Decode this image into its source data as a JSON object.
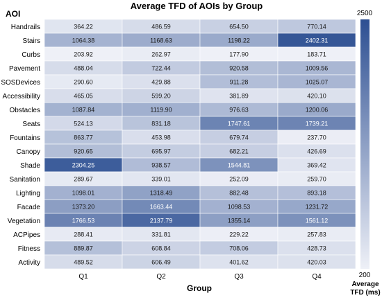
{
  "chart_data": {
    "type": "heatmap",
    "title": "Average TFD of AOIs by Group",
    "xlabel": "Group",
    "ylabel": "AOI",
    "columns": [
      "Q1",
      "Q2",
      "Q3",
      "Q4"
    ],
    "rows": [
      "Handrails",
      "Stairs",
      "Curbs",
      "Pavement",
      "SOSDevices",
      "Accessibility",
      "Obstacles",
      "Seats",
      "Fountains",
      "Canopy",
      "Shade",
      "Sanitation",
      "Lighting",
      "Facade",
      "Vegetation",
      "ACPipes",
      "Fitness",
      "Activity"
    ],
    "values": [
      [
        "364.22",
        "486.59",
        "654.50",
        "770.14"
      ],
      [
        "1064.38",
        "1168.63",
        "1198.22",
        "2402.31"
      ],
      [
        "203.92",
        "262.97",
        "177.90",
        "183.71"
      ],
      [
        "488.04",
        "722.44",
        "920.58",
        "1009.56"
      ],
      [
        "290.60",
        "429.88",
        "911.28",
        "1025.07"
      ],
      [
        "465.05",
        "599.20",
        "381.89",
        "420.10"
      ],
      [
        "1087.84",
        "1119.90",
        "976.63",
        "1200.06"
      ],
      [
        "524.13",
        "831.18",
        "1747.61",
        "1739.21"
      ],
      [
        "863.77",
        "453.98",
        "679.74",
        "237.70"
      ],
      [
        "920.65",
        "695.97",
        "682.21",
        "426.69"
      ],
      [
        "2304.25",
        "938.57",
        "1544.81",
        "369.42"
      ],
      [
        "289.67",
        "339.01",
        "252.09",
        "259.70"
      ],
      [
        "1098.01",
        "1318.49",
        "882.48",
        "893.18"
      ],
      [
        "1373.20",
        "1663.44",
        "1098.53",
        "1231.72"
      ],
      [
        "1766.53",
        "2137.79",
        "1355.14",
        "1561.12"
      ],
      [
        "288.41",
        "331.81",
        "229.22",
        "257.83"
      ],
      [
        "889.87",
        "608.84",
        "708.06",
        "428.73"
      ],
      [
        "489.52",
        "606.49",
        "401.62",
        "420.03"
      ]
    ],
    "colorbar": {
      "label_line1": "Average",
      "label_line2": "TFD (ms)",
      "min": 200,
      "max": 2500,
      "min_label": "200",
      "max_label": "2500",
      "color_low": "#eef0f7",
      "color_high": "#2d4f92"
    }
  }
}
